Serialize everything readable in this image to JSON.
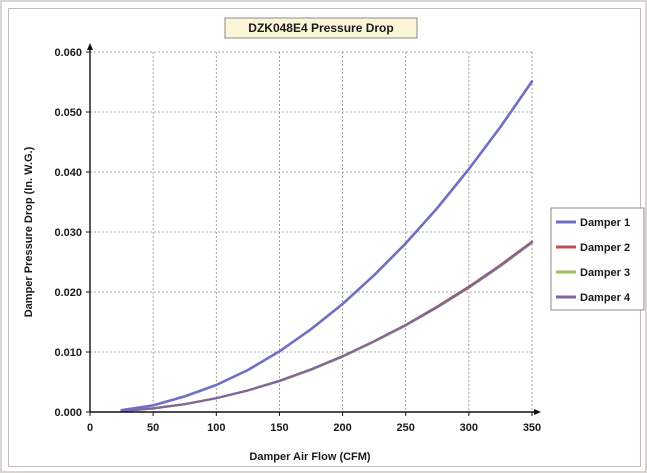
{
  "chart_data": {
    "type": "line",
    "title": "DZK048E4 Pressure Drop",
    "xlabel": "Damper Air Flow (CFM)",
    "ylabel": "Damper Pressure Drop (In. W.G.)",
    "xlim": [
      0,
      350
    ],
    "ylim": [
      0,
      0.06
    ],
    "xticks": [
      0,
      50,
      100,
      150,
      200,
      250,
      300,
      350
    ],
    "xtick_labels": [
      "0",
      "50",
      "100",
      "150",
      "200",
      "250",
      "300",
      "350"
    ],
    "yticks": [
      0,
      0.01,
      0.02,
      0.03,
      0.04,
      0.05,
      0.06
    ],
    "ytick_labels": [
      "0.000",
      "0.010",
      "0.020",
      "0.030",
      "0.040",
      "0.050",
      "0.060"
    ],
    "grid": true,
    "legend_position": "right",
    "x": [
      25,
      50,
      75,
      100,
      125,
      150,
      175,
      200,
      225,
      250,
      275,
      300,
      325,
      350
    ],
    "series": [
      {
        "name": "Damper 1",
        "color": "#6f6fc4",
        "values": [
          0.0003,
          0.0011,
          0.0026,
          0.0045,
          0.007,
          0.0101,
          0.0138,
          0.018,
          0.0228,
          0.0281,
          0.034,
          0.0405,
          0.0475,
          0.0551
        ]
      },
      {
        "name": "Damper 2",
        "color": "#c0504d",
        "values": [
          0.00015,
          0.0006,
          0.0013,
          0.0023,
          0.0036,
          0.0052,
          0.0071,
          0.0093,
          0.0118,
          0.0145,
          0.0176,
          0.0209,
          0.0245,
          0.0284
        ]
      },
      {
        "name": "Damper 3",
        "color": "#9bbb59",
        "values": [
          0.00015,
          0.0006,
          0.0013,
          0.0023,
          0.0036,
          0.0051,
          0.007,
          0.0092,
          0.0117,
          0.0144,
          0.0174,
          0.0207,
          0.0243,
          0.0282
        ]
      },
      {
        "name": "Damper 4",
        "color": "#8064a2",
        "values": [
          0.00015,
          0.0006,
          0.0013,
          0.0023,
          0.0036,
          0.0052,
          0.0071,
          0.0093,
          0.0118,
          0.0145,
          0.0175,
          0.0208,
          0.0244,
          0.0283
        ]
      }
    ]
  }
}
